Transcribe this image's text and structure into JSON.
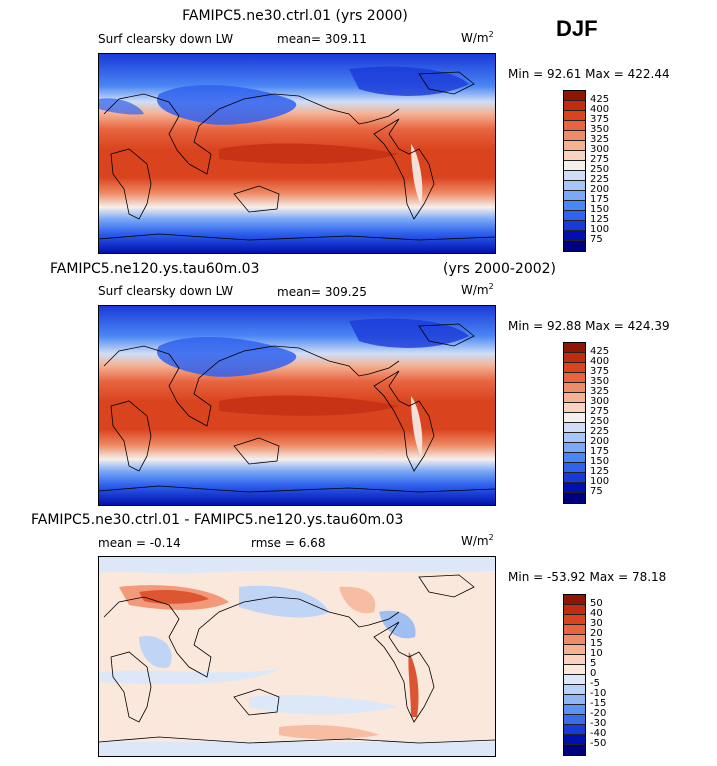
{
  "season": "DJF",
  "palette_levels": [
    "#00007f",
    "#0010b0",
    "#1a3ad8",
    "#2f62ee",
    "#4a86f4",
    "#7aa9f7",
    "#a7c6f7",
    "#cfdef6",
    "#f5f0ec",
    "#f9d3c0",
    "#f5b193",
    "#ef8b66",
    "#e86440",
    "#d9441f",
    "#bf2c10",
    "#8f1505"
  ],
  "chart_data": [
    {
      "type": "heatmap",
      "title": "FAMIPC5.ne30.ctrl.01 (yrs 2000)",
      "subtitle": "Surf clearsky down LW",
      "mean_label": "mean= 309.11",
      "units_label": "W/m",
      "units_sup": "2",
      "min_max": "Min =  92.61 Max = 422.44",
      "colorbar": {
        "levels": [
          "425",
          "400",
          "375",
          "350",
          "325",
          "300",
          "275",
          "250",
          "225",
          "200",
          "175",
          "150",
          "125",
          "100",
          "75"
        ],
        "colors": [
          "#8f1505",
          "#bf2c10",
          "#d9441f",
          "#e86440",
          "#ef8b66",
          "#f5b193",
          "#f9d3c0",
          "#f5f0ec",
          "#cfdef6",
          "#a7c6f7",
          "#7aa9f7",
          "#4a86f4",
          "#2f62ee",
          "#1a3ad8",
          "#0010b0",
          "#00007f"
        ]
      }
    },
    {
      "type": "heatmap",
      "title": "FAMIPC5.ne120.ys.tau60m.03",
      "title_right": "(yrs 2000-2002)",
      "subtitle": "Surf clearsky down LW",
      "mean_label": "mean= 309.25",
      "units_label": "W/m",
      "units_sup": "2",
      "min_max": "Min =  92.88 Max = 424.39",
      "colorbar": {
        "levels": [
          "425",
          "400",
          "375",
          "350",
          "325",
          "300",
          "275",
          "250",
          "225",
          "200",
          "175",
          "150",
          "125",
          "100",
          "75"
        ],
        "colors": [
          "#8f1505",
          "#bf2c10",
          "#d9441f",
          "#e86440",
          "#ef8b66",
          "#f5b193",
          "#f9d3c0",
          "#f5f0ec",
          "#cfdef6",
          "#a7c6f7",
          "#7aa9f7",
          "#4a86f4",
          "#2f62ee",
          "#1a3ad8",
          "#0010b0",
          "#00007f"
        ]
      }
    },
    {
      "type": "heatmap",
      "title": "FAMIPC5.ne30.ctrl.01 - FAMIPC5.ne120.ys.tau60m.03",
      "mean_label": "mean =   -0.14",
      "rmse_label": "rmse =    6.68",
      "units_label": "W/m",
      "units_sup": "2",
      "min_max": "Min = -53.92 Max =  78.18",
      "colorbar": {
        "levels": [
          "50",
          "40",
          "30",
          "20",
          "15",
          "10",
          "5",
          "0",
          "-5",
          "-10",
          "-15",
          "-20",
          "-30",
          "-40",
          "-50"
        ],
        "colors": [
          "#8f1505",
          "#bf2c10",
          "#d9441f",
          "#e86440",
          "#ef8b66",
          "#f5b193",
          "#f9d3c0",
          "#fbe8dc",
          "#dce8f8",
          "#b9d2f7",
          "#8eb6f6",
          "#5e92f2",
          "#3a6ce8",
          "#1a3ad8",
          "#0010b0",
          "#00007f"
        ]
      }
    }
  ]
}
